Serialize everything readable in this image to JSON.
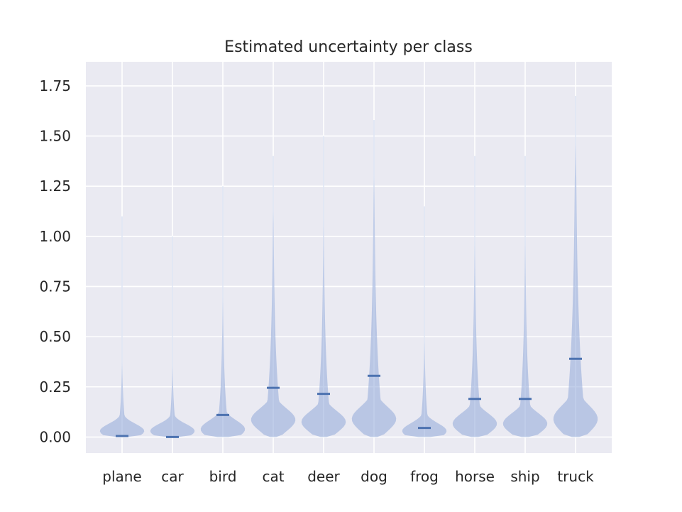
{
  "chart_data": {
    "type": "violin",
    "title": "Estimated uncertainty per class",
    "xlabel": "",
    "ylabel": "",
    "categories": [
      "plane",
      "car",
      "bird",
      "cat",
      "deer",
      "dog",
      "frog",
      "horse",
      "ship",
      "truck"
    ],
    "medians": [
      0.005,
      0.0,
      0.11,
      0.245,
      0.215,
      0.305,
      0.045,
      0.19,
      0.19,
      0.39
    ],
    "maxima": [
      1.1,
      1.0,
      1.25,
      1.4,
      1.5,
      1.58,
      1.15,
      1.4,
      1.4,
      1.7
    ],
    "ylim": [
      -0.08,
      1.87
    ],
    "yticks": [
      "0.00",
      "0.25",
      "0.50",
      "0.75",
      "1.00",
      "1.25",
      "1.50",
      "1.75"
    ],
    "grid": true,
    "colors": {
      "body": "#8fa8d8",
      "median": "#4c72b0",
      "plot_bg": "#eaeaf2",
      "grid": "#ffffff"
    }
  }
}
